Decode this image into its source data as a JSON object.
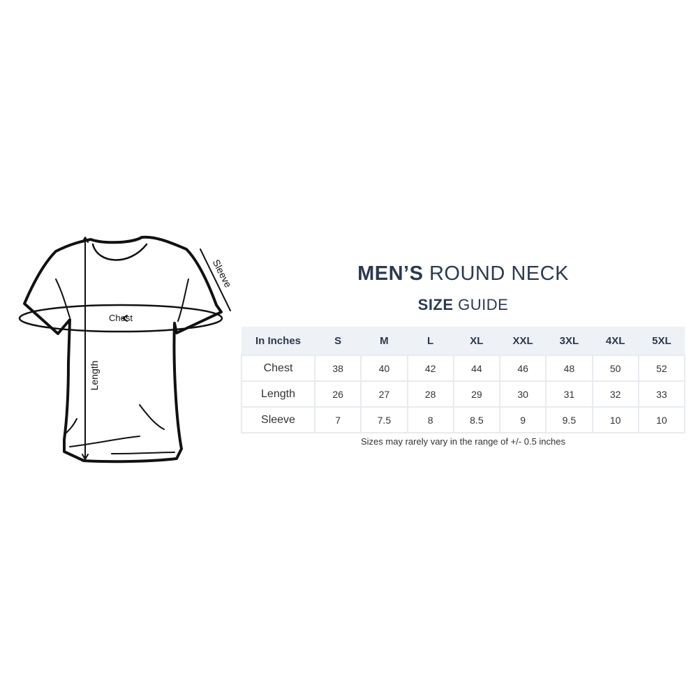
{
  "heading": {
    "bold": "MEN’S",
    "rest": "ROUND NECK"
  },
  "subheading": {
    "bold": "SIZE",
    "rest": "GUIDE"
  },
  "diagram_labels": {
    "chest": "Chest",
    "length": "Length",
    "sleeve": "Sleeve"
  },
  "table": {
    "corner": "In Inches",
    "sizes": [
      "S",
      "M",
      "L",
      "XL",
      "XXL",
      "3XL",
      "4XL",
      "5XL"
    ],
    "rows": [
      {
        "label": "Chest",
        "values": [
          "38",
          "40",
          "42",
          "44",
          "46",
          "48",
          "50",
          "52"
        ]
      },
      {
        "label": "Length",
        "values": [
          "26",
          "27",
          "28",
          "29",
          "30",
          "31",
          "32",
          "33"
        ]
      },
      {
        "label": "Sleeve",
        "values": [
          "7",
          "7.5",
          "8",
          "8.5",
          "9",
          "9.5",
          "10",
          "10"
        ]
      }
    ]
  },
  "note": "Sizes may rarely vary in the range of +/- 0.5 inches",
  "colors": {
    "heading": "#2b3a4f",
    "header_bg": "#eef1f5"
  }
}
